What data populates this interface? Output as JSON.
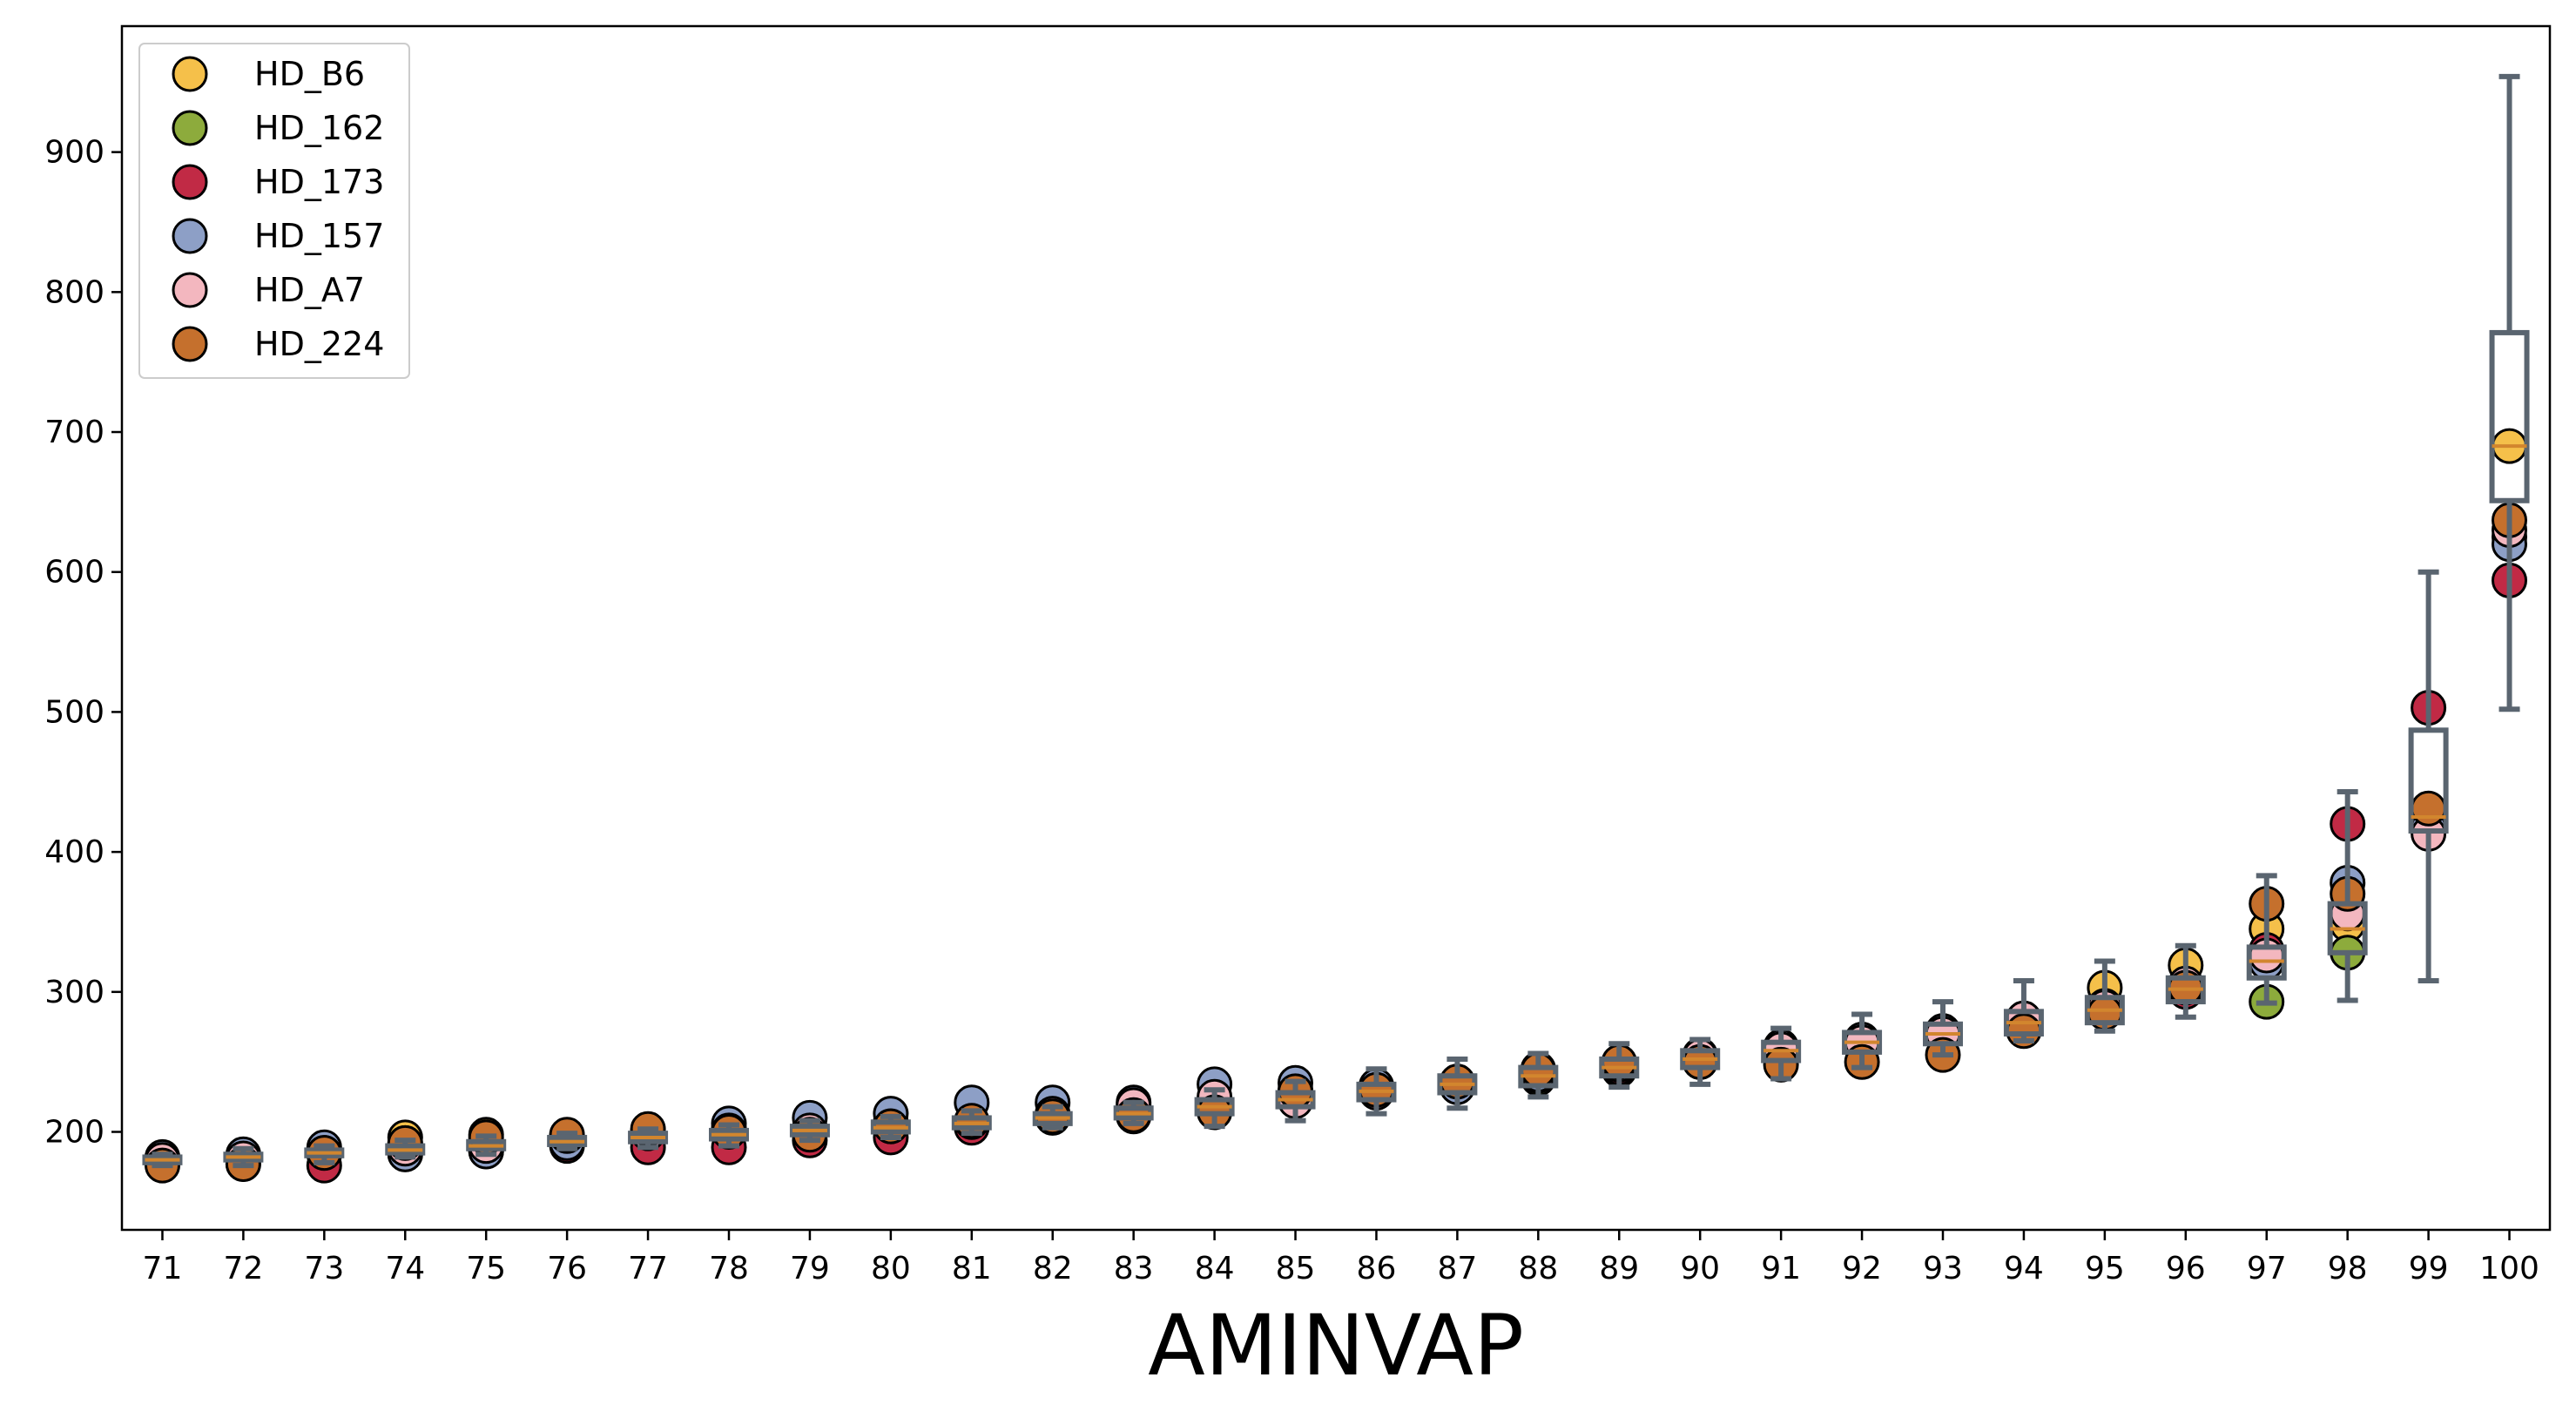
{
  "chart_data": {
    "type": "box-strip",
    "title": "",
    "xlabel": "AMINVAP",
    "ylabel": "",
    "categories": [
      "71",
      "72",
      "73",
      "74",
      "75",
      "76",
      "77",
      "78",
      "79",
      "80",
      "81",
      "82",
      "83",
      "84",
      "85",
      "86",
      "87",
      "88",
      "89",
      "90",
      "91",
      "92",
      "93",
      "94",
      "95",
      "96",
      "97",
      "98",
      "99",
      "100"
    ],
    "ylim": [
      130,
      990
    ],
    "xlim": [
      70.5,
      100.5
    ],
    "yticks": [
      200,
      300,
      400,
      500,
      600,
      700,
      800,
      900
    ],
    "ytick_labels": [
      "200",
      "300",
      "400",
      "500",
      "600",
      "700",
      "800",
      "900"
    ],
    "grid": false,
    "legend_position": "top-left",
    "box_color": "#5a6570",
    "median_color": "#d2862e",
    "series": [
      {
        "name": "HD_B6",
        "color": "#f5c04a",
        "values": [
          180,
          181,
          184,
          196,
          198,
          196,
          200,
          203,
          203,
          207,
          206,
          210,
          214,
          219,
          228,
          232,
          234,
          240,
          247,
          250,
          256,
          262,
          272,
          281,
          303,
          319,
          345,
          348,
          423,
          690
        ]
      },
      {
        "name": "HD_162",
        "color": "#8dab3c",
        "values": [
          178,
          180,
          184,
          192,
          194,
          193,
          198,
          198,
          203,
          204,
          205,
          212,
          211,
          218,
          224,
          229,
          233,
          238,
          244,
          250,
          258,
          265,
          270,
          279,
          288,
          305,
          293,
          328,
          430,
          625
        ]
      },
      {
        "name": "HD_173",
        "color": "#c12a45",
        "values": [
          177,
          177,
          176,
          184,
          186,
          190,
          189,
          189,
          194,
          196,
          203,
          211,
          216,
          217,
          230,
          231,
          232,
          240,
          246,
          252,
          260,
          263,
          270,
          279,
          287,
          300,
          330,
          420,
          503,
          594
        ]
      },
      {
        "name": "HD_157",
        "color": "#8d9fc6",
        "values": [
          182,
          184,
          189,
          184,
          186,
          192,
          200,
          206,
          210,
          213,
          221,
          221,
          221,
          234,
          235,
          233,
          232,
          241,
          250,
          255,
          261,
          266,
          272,
          280,
          290,
          305,
          321,
          378,
          418,
          620
        ]
      },
      {
        "name": "HD_A7",
        "color": "#f3b7bf",
        "values": [
          180,
          181,
          185,
          188,
          190,
          197,
          199,
          201,
          201,
          204,
          207,
          213,
          219,
          225,
          222,
          228,
          236,
          245,
          248,
          254,
          259,
          264,
          270,
          281,
          289,
          306,
          326,
          356,
          413,
          630
        ]
      },
      {
        "name": "HD_224",
        "color": "#c5702d",
        "values": [
          176,
          177,
          185,
          192,
          196,
          198,
          202,
          200,
          198,
          204,
          208,
          211,
          212,
          214,
          229,
          230,
          236,
          244,
          250,
          250,
          248,
          250,
          255,
          272,
          285,
          303,
          363,
          370,
          431,
          637
        ]
      }
    ],
    "boxes": [
      {
        "x": "71",
        "q1": 178,
        "median": 180,
        "q3": 182,
        "whislo": 176,
        "whishi": 184
      },
      {
        "x": "72",
        "q1": 180,
        "median": 182,
        "q3": 184,
        "whislo": 176,
        "whishi": 188
      },
      {
        "x": "73",
        "q1": 183,
        "median": 185,
        "q3": 187,
        "whislo": 178,
        "whishi": 190
      },
      {
        "x": "74",
        "q1": 185,
        "median": 187,
        "q3": 190,
        "whislo": 182,
        "whishi": 194
      },
      {
        "x": "75",
        "q1": 188,
        "median": 190,
        "q3": 193,
        "whislo": 184,
        "whishi": 197
      },
      {
        "x": "76",
        "q1": 191,
        "median": 193,
        "q3": 196,
        "whislo": 188,
        "whishi": 199
      },
      {
        "x": "77",
        "q1": 193,
        "median": 196,
        "q3": 199,
        "whislo": 189,
        "whishi": 202
      },
      {
        "x": "78",
        "q1": 195,
        "median": 198,
        "q3": 201,
        "whislo": 190,
        "whishi": 205
      },
      {
        "x": "79",
        "q1": 198,
        "median": 201,
        "q3": 204,
        "whislo": 194,
        "whishi": 208
      },
      {
        "x": "80",
        "q1": 200,
        "median": 203,
        "q3": 207,
        "whislo": 196,
        "whishi": 211
      },
      {
        "x": "81",
        "q1": 203,
        "median": 206,
        "q3": 210,
        "whislo": 199,
        "whishi": 215
      },
      {
        "x": "82",
        "q1": 206,
        "median": 210,
        "q3": 213,
        "whislo": 203,
        "whishi": 218
      },
      {
        "x": "83",
        "q1": 210,
        "median": 213,
        "q3": 217,
        "whislo": 206,
        "whishi": 221
      },
      {
        "x": "84",
        "q1": 213,
        "median": 218,
        "q3": 223,
        "whislo": 204,
        "whishi": 230
      },
      {
        "x": "85",
        "q1": 218,
        "median": 223,
        "q3": 228,
        "whislo": 208,
        "whishi": 236
      },
      {
        "x": "86",
        "q1": 223,
        "median": 229,
        "q3": 234,
        "whislo": 213,
        "whishi": 245
      },
      {
        "x": "87",
        "q1": 228,
        "median": 234,
        "q3": 240,
        "whislo": 217,
        "whishi": 252
      },
      {
        "x": "88",
        "q1": 233,
        "median": 240,
        "q3": 246,
        "whislo": 225,
        "whishi": 256
      },
      {
        "x": "89",
        "q1": 240,
        "median": 246,
        "q3": 252,
        "whislo": 232,
        "whishi": 263
      },
      {
        "x": "90",
        "q1": 246,
        "median": 252,
        "q3": 258,
        "whislo": 234,
        "whishi": 266
      },
      {
        "x": "91",
        "q1": 251,
        "median": 258,
        "q3": 264,
        "whislo": 238,
        "whishi": 274
      },
      {
        "x": "92",
        "q1": 257,
        "median": 264,
        "q3": 271,
        "whislo": 246,
        "whishi": 284
      },
      {
        "x": "93",
        "q1": 263,
        "median": 270,
        "q3": 277,
        "whislo": 255,
        "whishi": 293
      },
      {
        "x": "94",
        "q1": 270,
        "median": 278,
        "q3": 286,
        "whislo": 265,
        "whishi": 308
      },
      {
        "x": "95",
        "q1": 278,
        "median": 287,
        "q3": 296,
        "whislo": 272,
        "whishi": 322
      },
      {
        "x": "96",
        "q1": 293,
        "median": 302,
        "q3": 310,
        "whislo": 282,
        "whishi": 333
      },
      {
        "x": "97",
        "q1": 310,
        "median": 322,
        "q3": 332,
        "whislo": 292,
        "whishi": 383
      },
      {
        "x": "98",
        "q1": 328,
        "median": 345,
        "q3": 363,
        "whislo": 294,
        "whishi": 443
      },
      {
        "x": "99",
        "q1": 415,
        "median": 425,
        "q3": 487,
        "whislo": 308,
        "whishi": 600
      },
      {
        "x": "100",
        "q1": 651,
        "median": 690,
        "q3": 771,
        "whislo": 502,
        "whishi": 954
      }
    ]
  }
}
